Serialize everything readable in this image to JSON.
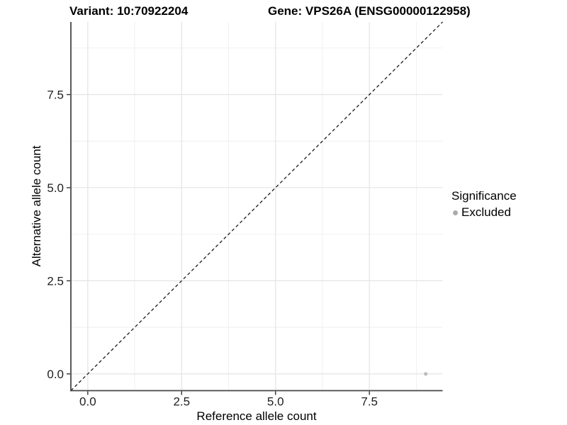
{
  "chart_data": {
    "type": "scatter",
    "title_left": "Variant: 10:70922204",
    "title_right": "Gene: VPS26A (ENSG00000122958)",
    "xlabel": "Reference allele count",
    "ylabel": "Alternative allele count",
    "xlim": [
      -0.45,
      9.45
    ],
    "ylim": [
      -0.45,
      9.45
    ],
    "x_ticks": {
      "values": [
        0,
        2.5,
        5,
        7.5
      ],
      "labels": [
        "0.0",
        "2.5",
        "5.0",
        "7.5"
      ]
    },
    "y_ticks": {
      "values": [
        0,
        2.5,
        5,
        7.5
      ],
      "labels": [
        "0.0",
        "2.5",
        "5.0",
        "7.5"
      ]
    },
    "minor_tick_values": [
      1.25,
      3.75,
      6.25,
      8.75
    ],
    "grid": true,
    "reference_line": {
      "type": "identity",
      "slope": 1,
      "intercept": 0,
      "style": "dashed",
      "color": "#1a1a1a"
    },
    "series": [
      {
        "name": "Excluded",
        "color": "#bcbcbc",
        "point_radius": 2.6,
        "points": [
          {
            "x": 9,
            "y": 0
          }
        ]
      }
    ],
    "legend": {
      "title": "Significance",
      "position": "right",
      "entries": [
        {
          "label": "Excluded",
          "color": "#ababab"
        }
      ]
    },
    "style": {
      "background": "#ffffff",
      "grid_major_color": "#e4e4e4",
      "grid_minor_color": "#efefef",
      "axis_line_color": "#474747",
      "tick_color": "#333333",
      "tick_label_color": "#1f1f1f",
      "tick_label_size": 17
    }
  }
}
